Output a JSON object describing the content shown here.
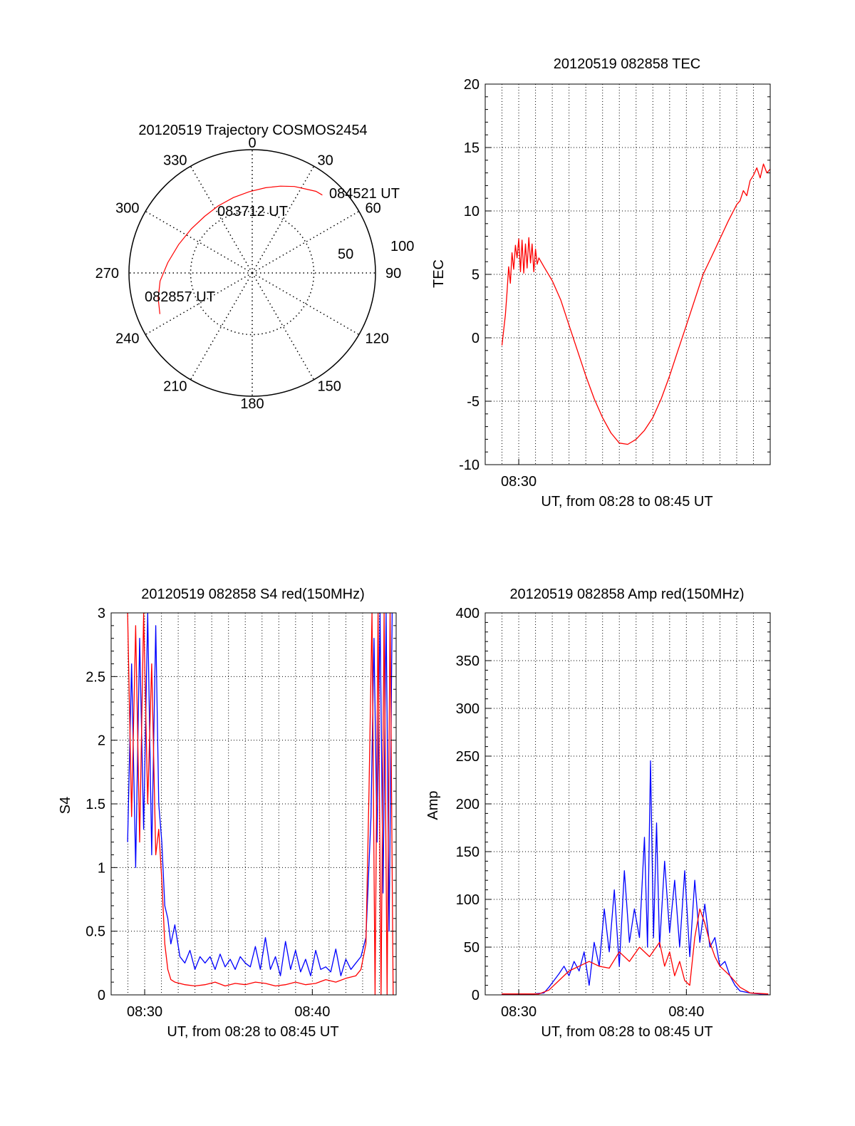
{
  "chart_data": [
    {
      "type": "polar",
      "title": "20120519 Trajectory COSMOS2454",
      "azimuth_labels": [
        "0",
        "30",
        "60",
        "90",
        "120",
        "150",
        "180",
        "210",
        "240",
        "270",
        "300",
        "330"
      ],
      "elevation_rings": [
        0,
        50,
        100
      ],
      "ring_labels": [
        "50",
        "100"
      ],
      "track_color": "#ff0000",
      "track": [
        {
          "az": 246,
          "r": 82
        },
        {
          "az": 255,
          "r": 79
        },
        {
          "az": 265,
          "r": 75
        },
        {
          "az": 277,
          "r": 69
        },
        {
          "az": 291,
          "r": 64
        },
        {
          "az": 306,
          "r": 61
        },
        {
          "az": 320,
          "r": 60
        },
        {
          "az": 333,
          "r": 61
        },
        {
          "az": 346,
          "r": 63
        },
        {
          "az": 358,
          "r": 66
        },
        {
          "az": 9,
          "r": 70
        },
        {
          "az": 18,
          "r": 74
        },
        {
          "az": 26,
          "r": 78
        },
        {
          "az": 33,
          "r": 81
        },
        {
          "az": 38,
          "r": 84
        },
        {
          "az": 42,
          "r": 85
        }
      ],
      "annotations": [
        "082857 UT",
        "083712 UT",
        "084521 UT"
      ]
    },
    {
      "type": "line",
      "title": "20120519 082858 TEC",
      "xlabel": "UT, from 08:28 to 08:45 UT",
      "ylabel": "TEC",
      "xlim": [
        8.466667,
        8.75
      ],
      "ylim": [
        -10,
        20
      ],
      "yticks": [
        -10,
        -5,
        0,
        5,
        10,
        15,
        20
      ],
      "xticks": [
        {
          "v": 8.5,
          "label": "08:30"
        }
      ],
      "series": [
        {
          "color": "#ff0000",
          "x": [
            8.4833,
            8.485,
            8.4867,
            8.4883,
            8.49,
            8.4917,
            8.4933,
            8.495,
            8.4967,
            8.4983,
            8.5,
            8.5017,
            8.5033,
            8.505,
            8.5067,
            8.5083,
            8.51,
            8.5117,
            8.5133,
            8.515,
            8.5167,
            8.5183,
            8.52,
            8.525,
            8.5333,
            8.5417,
            8.55,
            8.5583,
            8.5667,
            8.575,
            8.5833,
            8.5917,
            8.6,
            8.6083,
            8.6167,
            8.625,
            8.6333,
            8.6417,
            8.65,
            8.6583,
            8.6667,
            8.675,
            8.6833,
            8.6917,
            8.7,
            8.7083,
            8.7167,
            8.72,
            8.7233,
            8.7267,
            8.73,
            8.7333,
            8.7367,
            8.74,
            8.7433,
            8.7467,
            8.75
          ],
          "values": [
            -0.6,
            0.6,
            1.8,
            3.5,
            5.6,
            4.3,
            6.7,
            5.4,
            7.3,
            6.3,
            7.8,
            5.2,
            7.7,
            5.1,
            7.4,
            5.5,
            7.9,
            5.9,
            7.4,
            5.2,
            7.0,
            5.8,
            6.3,
            5.6,
            4.5,
            3.0,
            1.0,
            -1.0,
            -3.0,
            -4.8,
            -6.3,
            -7.5,
            -8.3,
            -8.4,
            -8.0,
            -7.3,
            -6.3,
            -4.8,
            -3.0,
            -1.0,
            1.0,
            3.0,
            5.0,
            6.4,
            7.8,
            9.2,
            10.5,
            10.8,
            11.6,
            11.2,
            12.4,
            12.8,
            13.4,
            12.6,
            13.7,
            13.0,
            13.3
          ]
        }
      ]
    },
    {
      "type": "line",
      "title": "20120519 082858 S4 red(150MHz)",
      "xlabel": "UT, from 08:28 to 08:45 UT",
      "ylabel": "S4",
      "xlim": [
        8.466667,
        8.75
      ],
      "ylim": [
        0,
        3
      ],
      "yticks": [
        0,
        0.5,
        1,
        1.5,
        2,
        2.5,
        3
      ],
      "ytick_labels": [
        "0",
        "0.5",
        "1",
        "1.5",
        "2",
        "2.5",
        "3"
      ],
      "xticks": [
        {
          "v": 8.5,
          "label": "08:30"
        },
        {
          "v": 8.666667,
          "label": "08:40"
        }
      ],
      "series": [
        {
          "color": "#0000ff",
          "x": [
            8.483,
            8.487,
            8.491,
            8.495,
            8.499,
            8.503,
            8.507,
            8.511,
            8.514,
            8.517,
            8.52,
            8.523,
            8.526,
            8.53,
            8.535,
            8.54,
            8.545,
            8.55,
            8.555,
            8.56,
            8.565,
            8.57,
            8.575,
            8.58,
            8.585,
            8.59,
            8.595,
            8.6,
            8.605,
            8.61,
            8.615,
            8.62,
            8.625,
            8.63,
            8.635,
            8.64,
            8.645,
            8.65,
            8.655,
            8.66,
            8.665,
            8.67,
            8.675,
            8.68,
            8.685,
            8.69,
            8.695,
            8.7,
            8.705,
            8.71,
            8.715,
            8.72,
            8.725,
            8.728,
            8.731,
            8.734,
            8.737,
            8.74,
            8.743,
            8.746
          ],
          "values": [
            1.2,
            2.6,
            1.0,
            2.8,
            1.3,
            3.0,
            1.1,
            2.9,
            1.5,
            1.2,
            0.7,
            0.6,
            0.4,
            0.55,
            0.3,
            0.25,
            0.35,
            0.2,
            0.3,
            0.25,
            0.3,
            0.2,
            0.32,
            0.22,
            0.28,
            0.2,
            0.3,
            0.25,
            0.22,
            0.38,
            0.2,
            0.45,
            0.2,
            0.3,
            0.15,
            0.42,
            0.2,
            0.35,
            0.18,
            0.28,
            0.15,
            0.35,
            0.2,
            0.22,
            0.18,
            0.36,
            0.15,
            0.28,
            0.2,
            0.25,
            0.3,
            0.45,
            1.4,
            2.8,
            1.2,
            3.0,
            0.8,
            3.0,
            0.5,
            3.0
          ]
        },
        {
          "color": "#ff0000",
          "x": [
            8.483,
            8.487,
            8.491,
            8.495,
            8.499,
            8.503,
            8.507,
            8.511,
            8.514,
            8.517,
            8.52,
            8.523,
            8.526,
            8.53,
            8.54,
            8.55,
            8.56,
            8.57,
            8.58,
            8.59,
            8.6,
            8.61,
            8.62,
            8.63,
            8.64,
            8.65,
            8.66,
            8.67,
            8.68,
            8.69,
            8.7,
            8.71,
            8.715,
            8.72,
            8.723,
            8.726,
            8.729,
            8.732,
            8.735,
            8.738,
            8.741,
            8.744,
            8.747
          ],
          "values": [
            3.0,
            1.4,
            2.9,
            1.2,
            3.0,
            1.5,
            2.6,
            1.1,
            1.3,
            0.9,
            0.4,
            0.2,
            0.12,
            0.1,
            0.08,
            0.07,
            0.08,
            0.1,
            0.07,
            0.09,
            0.08,
            0.1,
            0.09,
            0.07,
            0.08,
            0.1,
            0.08,
            0.09,
            0.12,
            0.1,
            0.13,
            0.15,
            0.2,
            0.4,
            1.6,
            3.0,
            0.0,
            3.0,
            0.0,
            3.0,
            0.0,
            3.0,
            0.0
          ]
        }
      ]
    },
    {
      "type": "line",
      "title": "20120519 082858 Amp red(150MHz)",
      "xlabel": "UT, from 08:28 to 08:45 UT",
      "ylabel": "Amp",
      "xlim": [
        8.466667,
        8.75
      ],
      "ylim": [
        0,
        400
      ],
      "yticks": [
        0,
        50,
        100,
        150,
        200,
        250,
        300,
        350,
        400
      ],
      "xticks": [
        {
          "v": 8.5,
          "label": "08:30"
        },
        {
          "v": 8.666667,
          "label": "08:40"
        }
      ],
      "series": [
        {
          "color": "#0000ff",
          "x": [
            8.483,
            8.5,
            8.515,
            8.525,
            8.53,
            8.535,
            8.54,
            8.545,
            8.55,
            8.555,
            8.56,
            8.565,
            8.57,
            8.575,
            8.58,
            8.585,
            8.59,
            8.595,
            8.6,
            8.605,
            8.61,
            8.615,
            8.62,
            8.625,
            8.628,
            8.631,
            8.634,
            8.637,
            8.64,
            8.645,
            8.65,
            8.655,
            8.66,
            8.665,
            8.67,
            8.675,
            8.68,
            8.685,
            8.69,
            8.695,
            8.7,
            8.705,
            8.71,
            8.715,
            8.72,
            8.73,
            8.74,
            8.748
          ],
          "values": [
            1,
            1,
            1,
            2,
            8,
            15,
            22,
            30,
            20,
            35,
            25,
            45,
            10,
            55,
            30,
            90,
            45,
            110,
            30,
            130,
            55,
            90,
            60,
            165,
            50,
            245,
            60,
            180,
            50,
            140,
            65,
            120,
            50,
            130,
            40,
            120,
            55,
            95,
            50,
            60,
            30,
            35,
            20,
            10,
            4,
            2,
            1,
            1
          ]
        },
        {
          "color": "#ff0000",
          "x": [
            8.483,
            8.52,
            8.53,
            8.54,
            8.55,
            8.56,
            8.57,
            8.58,
            8.59,
            8.6,
            8.61,
            8.62,
            8.63,
            8.64,
            8.645,
            8.65,
            8.655,
            8.66,
            8.665,
            8.67,
            8.675,
            8.68,
            8.685,
            8.69,
            8.695,
            8.7,
            8.705,
            8.71,
            8.72,
            8.73,
            8.748
          ],
          "values": [
            1,
            1,
            5,
            15,
            25,
            30,
            35,
            30,
            28,
            45,
            35,
            50,
            40,
            55,
            30,
            45,
            20,
            35,
            15,
            10,
            60,
            90,
            75,
            55,
            40,
            30,
            25,
            20,
            8,
            2,
            1
          ]
        }
      ]
    }
  ]
}
